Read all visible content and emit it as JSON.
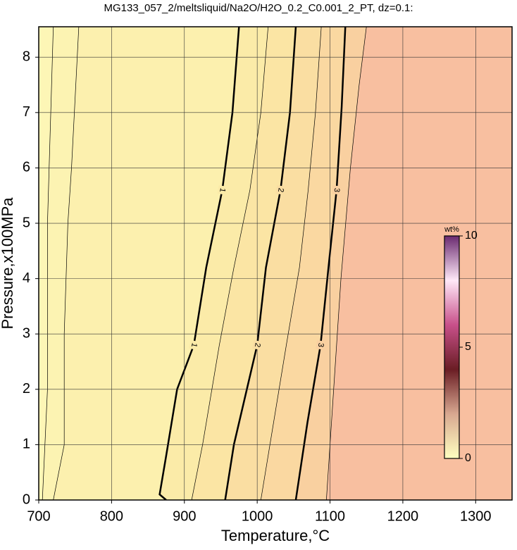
{
  "chart_data": {
    "type": "contour",
    "title": "MG133_057_2/meltsliquid/Na2O/H2O_0.2_C0.001_2_PT, dz=0.1:",
    "x_label": "Temperature,°C",
    "y_label": "Pressure,x100MPa",
    "xlim": [
      700,
      1350
    ],
    "ylim": [
      0,
      8.55
    ],
    "xticks": [
      700,
      800,
      900,
      1000,
      1100,
      1200,
      1300
    ],
    "yticks": [
      0,
      1,
      2,
      3,
      4,
      5,
      6,
      7,
      8
    ],
    "grid": true,
    "background": "#fdf6b6",
    "series": [
      {
        "level": 0.2,
        "bold": false,
        "color": "#fcf3b2",
        "x": [
          705,
          712,
          712,
          720
        ],
        "y": [
          0,
          2,
          5,
          8.55
        ]
      },
      {
        "level": 0.5,
        "bold": false,
        "color": "#fcf0ae",
        "x": [
          720,
          735,
          735,
          740,
          745,
          755
        ],
        "y": [
          0,
          1,
          3,
          5,
          6,
          8.55
        ]
      },
      {
        "level": 1,
        "bold": true,
        "color": "#fbeba8",
        "x": [
          875,
          866,
          875,
          890,
          913,
          930,
          952,
          966,
          975
        ],
        "y": [
          0,
          0.1,
          0.8,
          2,
          2.8,
          4.2,
          5.6,
          7,
          8.55
        ]
      },
      {
        "level": 1.5,
        "bold": false,
        "color": "#fbe5a4",
        "x": [
          910,
          925,
          948,
          968,
          990,
          1005,
          1015
        ],
        "y": [
          0,
          1,
          2.8,
          4.2,
          5.6,
          7,
          8.55
        ]
      },
      {
        "level": 2,
        "bold": true,
        "color": "#fadea2",
        "x": [
          956,
          968,
          1000,
          1012,
          1032,
          1045,
          1053
        ],
        "y": [
          0,
          1,
          2.8,
          4.2,
          5.6,
          7,
          8.55
        ]
      },
      {
        "level": 2.5,
        "bold": false,
        "color": "#fad8a1",
        "x": [
          1005,
          1020,
          1040,
          1058,
          1070,
          1080,
          1088
        ],
        "y": [
          0,
          1.2,
          2.8,
          4.2,
          5.6,
          7,
          8.55
        ]
      },
      {
        "level": 3,
        "bold": true,
        "color": "#f9d0a0",
        "x": [
          1053,
          1069,
          1087,
          1101,
          1109,
          1116,
          1121
        ],
        "y": [
          0,
          1.4,
          2.8,
          4.6,
          5.6,
          7.1,
          8.55
        ]
      },
      {
        "level": 3.5,
        "bold": false,
        "color": "#f8bfa0",
        "x": [
          1095,
          1105,
          1115,
          1128,
          1140,
          1150
        ],
        "y": [
          0,
          2,
          4,
          6,
          7.5,
          8.55
        ]
      }
    ],
    "colorbar": {
      "label": "wt%",
      "lim": [
        0,
        10
      ],
      "ticks": [
        0,
        5,
        10
      ],
      "colors": [
        "#ffffc0",
        "#d8a890",
        "#6a1d24",
        "#c8508a",
        "#ffe8f8",
        "#6a2a70"
      ]
    }
  }
}
